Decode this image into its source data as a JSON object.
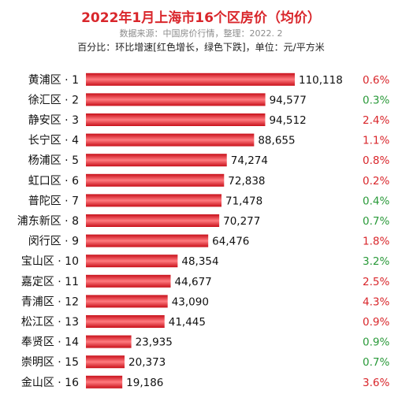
{
  "colors": {
    "title": "#d9262b",
    "bar_dark": "#c8101a",
    "bar_light": "#ff7a7f",
    "increase": "#d9262b",
    "decrease": "#2a9a3a"
  },
  "chart_data": {
    "type": "bar",
    "orientation": "horizontal",
    "title": "2022年1月上海市16个区房价（均价）",
    "subtitle": "数据来源：中国房价行情，整理：2022. 2",
    "note": "百分比：环比增速[红色增长，绿色下跌]，单位：元/平方米",
    "categories": [
      "黄浦区 · 1",
      "徐汇区 · 2",
      "静安区 · 3",
      "长宁区 · 4",
      "杨浦区 · 5",
      "虹口区 · 6",
      "普陀区 · 7",
      "浦东新区 · 8",
      "闵行区 · 9",
      "宝山区 · 10",
      "嘉定区 · 11",
      "青浦区 · 12",
      "松江区 · 13",
      "奉贤区 · 14",
      "崇明区 · 15",
      "金山区 · 16"
    ],
    "values": [
      110118,
      94577,
      94512,
      88655,
      74274,
      72838,
      71478,
      70277,
      64476,
      48354,
      44677,
      43090,
      41445,
      23935,
      20373,
      19186
    ],
    "value_labels": [
      "110,118",
      "94,577",
      "94,512",
      "88,655",
      "74,274",
      "72,838",
      "71,478",
      "70,277",
      "64,476",
      "48,354",
      "44,677",
      "43,090",
      "41,445",
      "23,935",
      "20,373",
      "19,186"
    ],
    "mom_change": [
      "0.6%",
      "0.3%",
      "2.4%",
      "1.1%",
      "0.8%",
      "0.2%",
      "0.4%",
      "0.7%",
      "1.8%",
      "3.2%",
      "2.5%",
      "4.3%",
      "0.9%",
      "0.9%",
      "0.7%",
      "3.6%"
    ],
    "mom_direction": [
      "up",
      "down",
      "up",
      "up",
      "up",
      "up",
      "down",
      "down",
      "up",
      "down",
      "up",
      "up",
      "up",
      "down",
      "down",
      "up"
    ],
    "xlim": [
      0,
      110118
    ],
    "grid": false,
    "legend": "none"
  }
}
